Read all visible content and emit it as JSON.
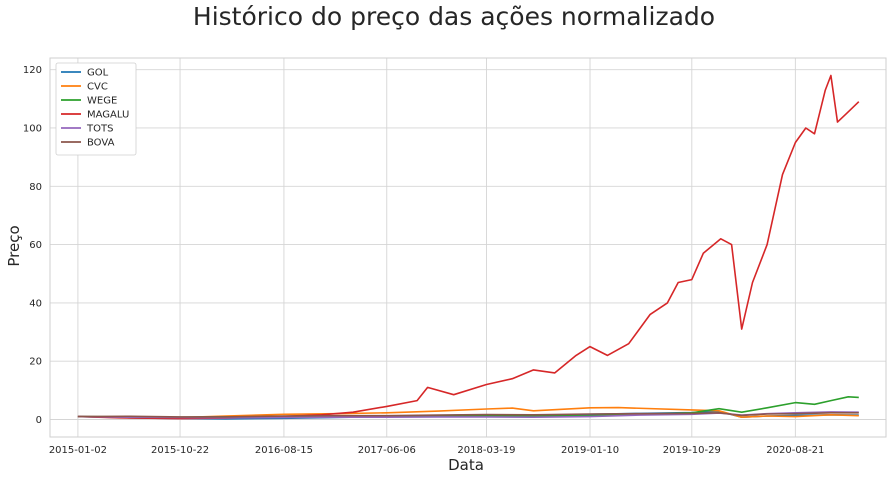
{
  "chart_data": {
    "type": "line",
    "title": "Histórico do preço das ações normalizado",
    "xlabel": "Data",
    "ylabel": "Preço",
    "x_ticks": [
      "2015-01-02",
      "2015-10-22",
      "2016-08-15",
      "2017-06-06",
      "2018-03-19",
      "2019-01-10",
      "2019-10-29",
      "2020-08-21"
    ],
    "y_ticks": [
      0,
      20,
      40,
      60,
      80,
      100,
      120
    ],
    "xlim": [
      "2014-10-14",
      "2021-05-08"
    ],
    "ylim": [
      -6,
      124
    ],
    "grid": true,
    "legend_position": "top-left",
    "series": [
      {
        "name": "GOL",
        "color": "#1f77b4",
        "points": [
          [
            "2015-01-02",
            1.0
          ],
          [
            "2015-06-01",
            0.6
          ],
          [
            "2015-10-22",
            0.3
          ],
          [
            "2016-03-01",
            0.2
          ],
          [
            "2016-08-15",
            0.4
          ],
          [
            "2017-01-10",
            0.7
          ],
          [
            "2017-06-06",
            1.0
          ],
          [
            "2017-11-01",
            1.4
          ],
          [
            "2018-03-19",
            1.6
          ],
          [
            "2018-08-01",
            1.3
          ],
          [
            "2019-01-10",
            1.8
          ],
          [
            "2019-06-01",
            2.1
          ],
          [
            "2019-10-29",
            2.4
          ],
          [
            "2020-01-15",
            2.8
          ],
          [
            "2020-03-20",
            0.8
          ],
          [
            "2020-06-01",
            1.2
          ],
          [
            "2020-08-21",
            1.4
          ],
          [
            "2020-12-01",
            1.6
          ],
          [
            "2021-02-19",
            1.5
          ]
        ]
      },
      {
        "name": "CVC",
        "color": "#ff7f0e",
        "points": [
          [
            "2015-01-02",
            1.0
          ],
          [
            "2015-06-01",
            0.8
          ],
          [
            "2015-10-22",
            0.7
          ],
          [
            "2016-03-01",
            1.2
          ],
          [
            "2016-08-15",
            1.8
          ],
          [
            "2017-01-10",
            2.0
          ],
          [
            "2017-06-06",
            2.3
          ],
          [
            "2017-11-01",
            2.9
          ],
          [
            "2018-03-19",
            3.6
          ],
          [
            "2018-06-01",
            3.9
          ],
          [
            "2018-08-01",
            3.0
          ],
          [
            "2019-01-10",
            4.0
          ],
          [
            "2019-04-01",
            4.1
          ],
          [
            "2019-10-29",
            3.3
          ],
          [
            "2020-01-15",
            3.0
          ],
          [
            "2020-03-20",
            0.8
          ],
          [
            "2020-06-01",
            1.2
          ],
          [
            "2020-08-21",
            1.0
          ],
          [
            "2020-12-01",
            1.6
          ],
          [
            "2021-02-19",
            1.3
          ]
        ]
      },
      {
        "name": "WEGE",
        "color": "#2ca02c",
        "points": [
          [
            "2015-01-02",
            1.0
          ],
          [
            "2015-06-01",
            0.9
          ],
          [
            "2015-10-22",
            0.8
          ],
          [
            "2016-03-01",
            0.9
          ],
          [
            "2016-08-15",
            0.9
          ],
          [
            "2017-01-10",
            1.0
          ],
          [
            "2017-06-06",
            1.2
          ],
          [
            "2017-11-01",
            1.3
          ],
          [
            "2018-03-19",
            1.3
          ],
          [
            "2018-08-01",
            1.2
          ],
          [
            "2019-01-10",
            1.3
          ],
          [
            "2019-06-01",
            1.8
          ],
          [
            "2019-10-29",
            2.3
          ],
          [
            "2020-01-15",
            3.7
          ],
          [
            "2020-03-20",
            2.5
          ],
          [
            "2020-06-01",
            4.0
          ],
          [
            "2020-08-21",
            5.8
          ],
          [
            "2020-10-15",
            5.2
          ],
          [
            "2020-12-01",
            6.5
          ],
          [
            "2021-01-20",
            7.8
          ],
          [
            "2021-02-19",
            7.6
          ]
        ]
      },
      {
        "name": "MAGALU",
        "color": "#d62728",
        "points": [
          [
            "2015-01-02",
            1.0
          ],
          [
            "2015-05-01",
            0.6
          ],
          [
            "2015-10-22",
            0.3
          ],
          [
            "2016-03-01",
            0.5
          ],
          [
            "2016-08-15",
            1.1
          ],
          [
            "2016-12-01",
            1.6
          ],
          [
            "2017-03-01",
            2.5
          ],
          [
            "2017-06-06",
            4.5
          ],
          [
            "2017-09-01",
            6.5
          ],
          [
            "2017-10-01",
            11.0
          ],
          [
            "2017-12-15",
            8.5
          ],
          [
            "2018-03-19",
            12.0
          ],
          [
            "2018-06-01",
            14.0
          ],
          [
            "2018-08-01",
            17.0
          ],
          [
            "2018-10-01",
            16.0
          ],
          [
            "2018-12-01",
            22.0
          ],
          [
            "2019-01-10",
            25.0
          ],
          [
            "2019-03-01",
            22.0
          ],
          [
            "2019-05-01",
            26.0
          ],
          [
            "2019-07-01",
            36.0
          ],
          [
            "2019-08-20",
            40.0
          ],
          [
            "2019-09-20",
            47.0
          ],
          [
            "2019-10-29",
            48.0
          ],
          [
            "2019-12-01",
            57.0
          ],
          [
            "2020-01-20",
            62.0
          ],
          [
            "2020-02-20",
            60.0
          ],
          [
            "2020-03-20",
            31.0
          ],
          [
            "2020-04-20",
            47.0
          ],
          [
            "2020-06-01",
            60.0
          ],
          [
            "2020-07-15",
            84.0
          ],
          [
            "2020-08-21",
            95.0
          ],
          [
            "2020-09-20",
            100.0
          ],
          [
            "2020-10-15",
            98.0
          ],
          [
            "2020-11-15",
            113.0
          ],
          [
            "2020-12-01",
            118.0
          ],
          [
            "2020-12-20",
            102.0
          ],
          [
            "2021-01-15",
            105.0
          ],
          [
            "2021-02-19",
            109.0
          ]
        ]
      },
      {
        "name": "TOTS",
        "color": "#9467bd",
        "points": [
          [
            "2015-01-02",
            1.0
          ],
          [
            "2015-06-01",
            0.8
          ],
          [
            "2015-10-22",
            0.7
          ],
          [
            "2016-03-01",
            0.6
          ],
          [
            "2016-08-15",
            0.7
          ],
          [
            "2017-01-10",
            0.8
          ],
          [
            "2017-06-06",
            0.8
          ],
          [
            "2017-11-01",
            0.9
          ],
          [
            "2018-03-19",
            0.9
          ],
          [
            "2018-08-01",
            0.8
          ],
          [
            "2019-01-10",
            1.0
          ],
          [
            "2019-06-01",
            1.5
          ],
          [
            "2019-10-29",
            1.8
          ],
          [
            "2020-01-15",
            2.2
          ],
          [
            "2020-03-20",
            1.5
          ],
          [
            "2020-06-01",
            2.0
          ],
          [
            "2020-08-21",
            2.3
          ],
          [
            "2020-12-01",
            2.6
          ],
          [
            "2021-02-19",
            2.5
          ]
        ]
      },
      {
        "name": "BOVA",
        "color": "#8c564b",
        "points": [
          [
            "2015-01-02",
            1.0
          ],
          [
            "2015-06-01",
            1.1
          ],
          [
            "2015-10-22",
            0.9
          ],
          [
            "2016-03-01",
            0.9
          ],
          [
            "2016-08-15",
            1.2
          ],
          [
            "2017-01-10",
            1.3
          ],
          [
            "2017-06-06",
            1.3
          ],
          [
            "2017-11-01",
            1.5
          ],
          [
            "2018-03-19",
            1.7
          ],
          [
            "2018-08-01",
            1.6
          ],
          [
            "2019-01-10",
            1.9
          ],
          [
            "2019-06-01",
            2.0
          ],
          [
            "2019-10-29",
            2.1
          ],
          [
            "2020-01-15",
            2.3
          ],
          [
            "2020-03-20",
            1.4
          ],
          [
            "2020-06-01",
            1.9
          ],
          [
            "2020-08-21",
            2.0
          ],
          [
            "2020-12-01",
            2.3
          ],
          [
            "2021-02-19",
            2.3
          ]
        ]
      }
    ]
  }
}
